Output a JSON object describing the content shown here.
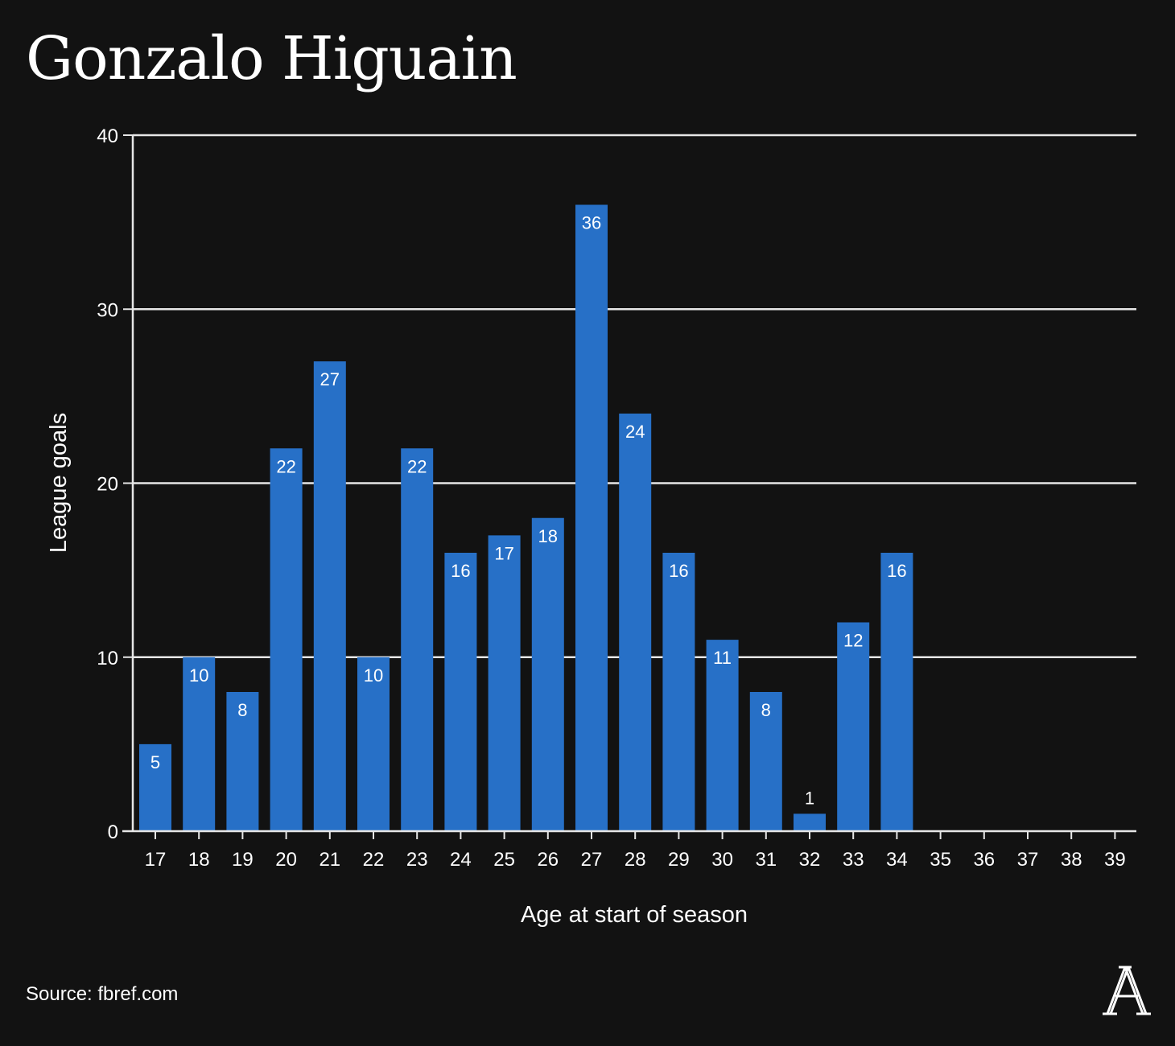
{
  "title": "Gonzalo Higuain",
  "source": "Source: fbref.com",
  "colors": {
    "background": "#121212",
    "bar": "#2770c7",
    "text": "#ffffff",
    "grid": "#e6e6e6"
  },
  "logo_icon": "athletic-a-logo-icon",
  "chart_data": {
    "type": "bar",
    "title": "Gonzalo Higuain",
    "xlabel": "Age at start of season",
    "ylabel": "League goals",
    "ylim": [
      0,
      40
    ],
    "yticks": [
      0,
      10,
      20,
      30,
      40
    ],
    "grid": true,
    "categories": [
      "17",
      "18",
      "19",
      "20",
      "21",
      "22",
      "23",
      "24",
      "25",
      "26",
      "27",
      "28",
      "29",
      "30",
      "31",
      "32",
      "33",
      "34",
      "35",
      "36",
      "37",
      "38",
      "39"
    ],
    "values": [
      5,
      10,
      8,
      22,
      27,
      10,
      22,
      16,
      17,
      18,
      36,
      24,
      16,
      11,
      8,
      1,
      12,
      16,
      null,
      null,
      null,
      null,
      null
    ]
  }
}
